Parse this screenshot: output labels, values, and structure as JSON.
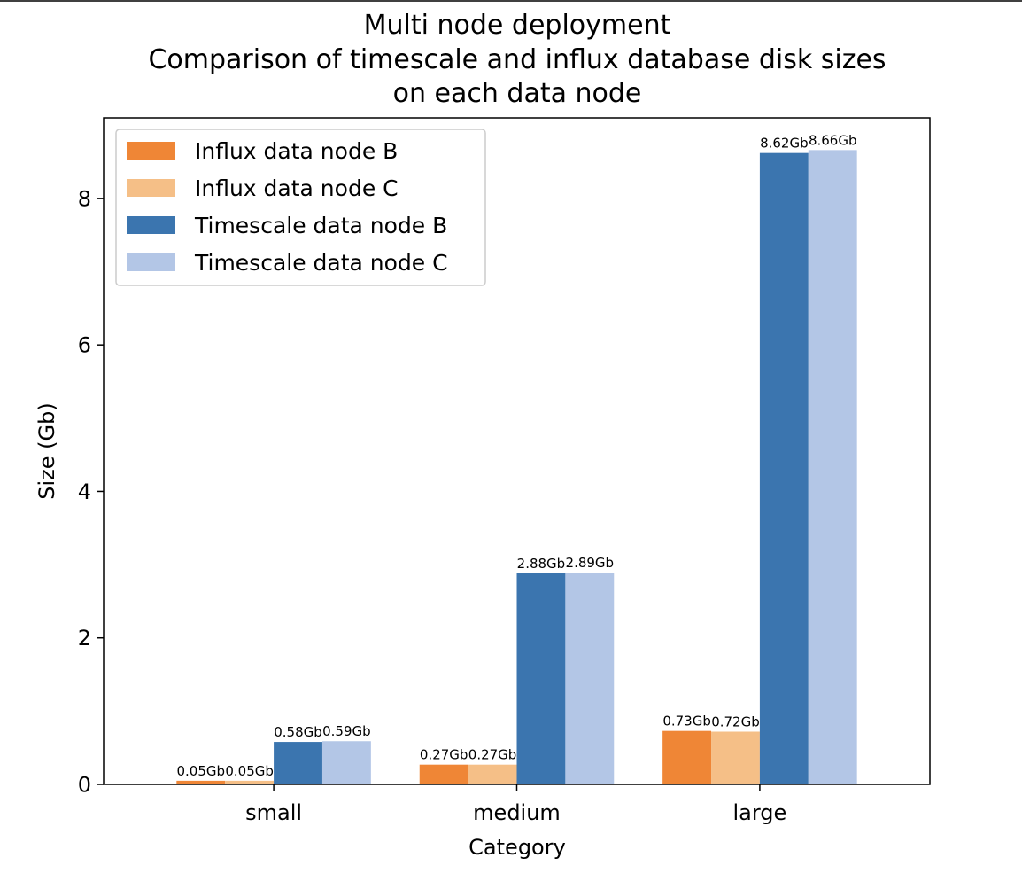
{
  "chart_data": {
    "type": "bar",
    "title": [
      "Multi node deployment",
      "Comparison of timescale and influx database disk sizes",
      "on each data node"
    ],
    "xlabel": "Category",
    "ylabel": "Size (Gb)",
    "categories": [
      "small",
      "medium",
      "large"
    ],
    "ylim": [
      0,
      9.1
    ],
    "yticks": [
      0,
      2,
      4,
      6,
      8
    ],
    "grid": false,
    "legend_position": "top-left",
    "series": [
      {
        "name": "Influx data node B",
        "color": "#ef8636",
        "values": [
          0.05,
          0.27,
          0.73
        ],
        "labels": [
          "0.05Gb",
          "0.27Gb",
          "0.73Gb"
        ]
      },
      {
        "name": "Influx data node C",
        "color": "#f5bf87",
        "values": [
          0.05,
          0.27,
          0.72
        ],
        "labels": [
          "0.05Gb",
          "0.27Gb",
          "0.72Gb"
        ]
      },
      {
        "name": "Timescale data node B",
        "color": "#3b75af",
        "values": [
          0.58,
          2.88,
          8.62
        ],
        "labels": [
          "0.58Gb",
          "2.88Gb",
          "8.62Gb"
        ]
      },
      {
        "name": "Timescale data node C",
        "color": "#b3c6e6",
        "values": [
          0.59,
          2.89,
          8.66
        ],
        "labels": [
          "0.59Gb",
          "2.89Gb",
          "8.66Gb"
        ]
      }
    ]
  }
}
